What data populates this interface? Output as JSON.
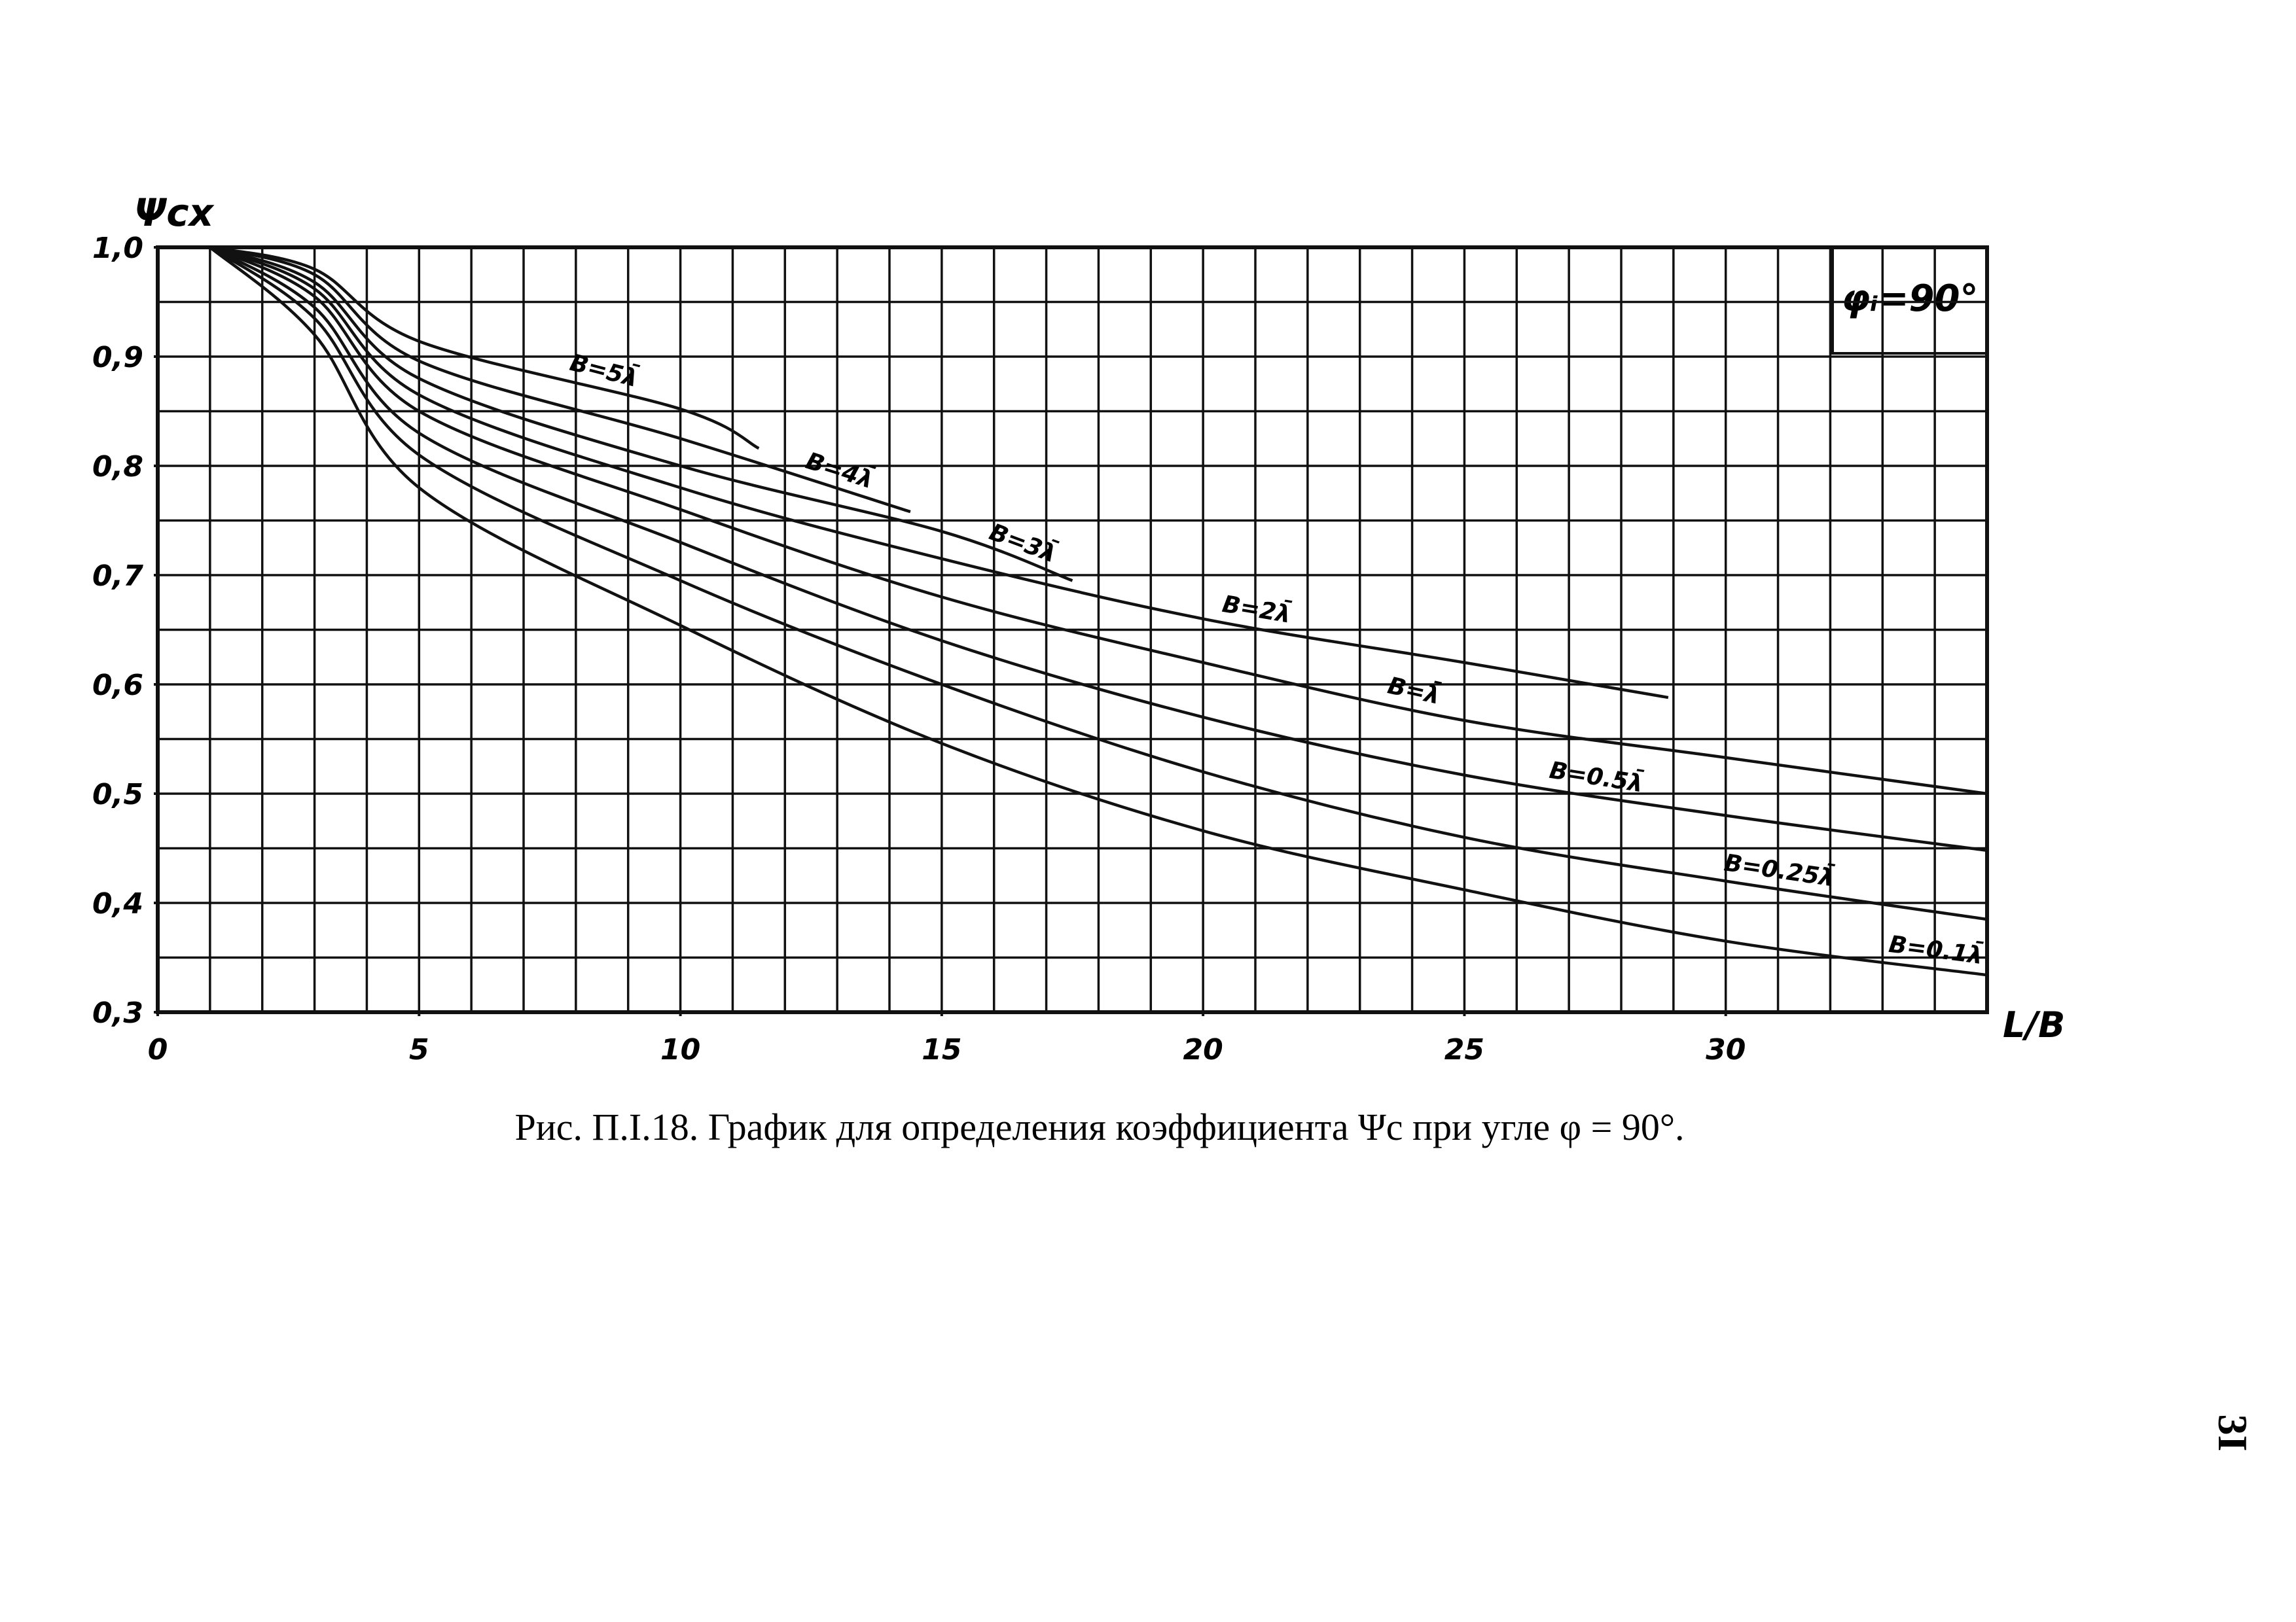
{
  "chart_data": {
    "type": "line",
    "y_label": "Ψcx",
    "x_label": "L/B",
    "inset": "φᵢ=90°",
    "caption": "Рис. П.I.18. График для определения коэффициента Ψc при угле φ = 90°.",
    "page_number": "3I",
    "xlim": [
      0,
      35
    ],
    "xticks": [
      0,
      5,
      10,
      15,
      20,
      25,
      30
    ],
    "ylim": [
      0.3,
      1.0
    ],
    "yticks": [
      {
        "value": 0.3,
        "label": "0,3"
      },
      {
        "value": 0.4,
        "label": "0,4"
      },
      {
        "value": 0.5,
        "label": "0,5"
      },
      {
        "value": 0.6,
        "label": "0,6"
      },
      {
        "value": 0.7,
        "label": "0,7"
      },
      {
        "value": 0.8,
        "label": "0,8"
      },
      {
        "value": 0.9,
        "label": "0,9"
      },
      {
        "value": 1.0,
        "label": "1,0"
      }
    ],
    "grid": true,
    "minor_grid": {
      "x": 1,
      "y": 0.05
    },
    "series": [
      {
        "name": "B=5λ̄",
        "color": "#111111",
        "x": [
          1,
          3,
          5,
          10,
          11.5
        ],
        "values": [
          1.0,
          0.98,
          0.914,
          0.852,
          0.816
        ]
      },
      {
        "name": "B=4λ̄",
        "color": "#111111",
        "x": [
          1,
          3,
          5,
          10,
          14.4
        ],
        "values": [
          1.0,
          0.975,
          0.896,
          0.825,
          0.758
        ]
      },
      {
        "name": "B=3λ̄",
        "color": "#111111",
        "x": [
          1,
          3,
          5,
          10,
          15,
          17.5
        ],
        "values": [
          1.0,
          0.968,
          0.88,
          0.8,
          0.74,
          0.695
        ]
      },
      {
        "name": "B=2λ̄",
        "color": "#111111",
        "x": [
          1,
          3,
          5,
          10,
          15,
          20,
          25,
          28.9
        ],
        "values": [
          1.0,
          0.962,
          0.865,
          0.78,
          0.715,
          0.66,
          0.62,
          0.588
        ]
      },
      {
        "name": "B=λ̄",
        "color": "#111111",
        "x": [
          1,
          3,
          5,
          10,
          15,
          20,
          25,
          30,
          35
        ],
        "values": [
          1.0,
          0.955,
          0.85,
          0.76,
          0.68,
          0.62,
          0.567,
          0.533,
          0.5
        ]
      },
      {
        "name": "B=0.5λ̄",
        "color": "#111111",
        "x": [
          1,
          3,
          5,
          10,
          15,
          20,
          25,
          30,
          35
        ],
        "values": [
          1.0,
          0.945,
          0.83,
          0.73,
          0.64,
          0.57,
          0.517,
          0.48,
          0.448
        ]
      },
      {
        "name": "B=0.25λ̄",
        "color": "#111111",
        "x": [
          1,
          3,
          5,
          10,
          15,
          20,
          25,
          30,
          35
        ],
        "values": [
          1.0,
          0.935,
          0.81,
          0.695,
          0.6,
          0.52,
          0.46,
          0.42,
          0.385
        ]
      },
      {
        "name": "B=0.1λ̄",
        "color": "#111111",
        "x": [
          1,
          3,
          5,
          10,
          15,
          20,
          25,
          30,
          35
        ],
        "values": [
          1.0,
          0.92,
          0.78,
          0.654,
          0.546,
          0.466,
          0.412,
          0.365,
          0.334
        ]
      }
    ]
  }
}
